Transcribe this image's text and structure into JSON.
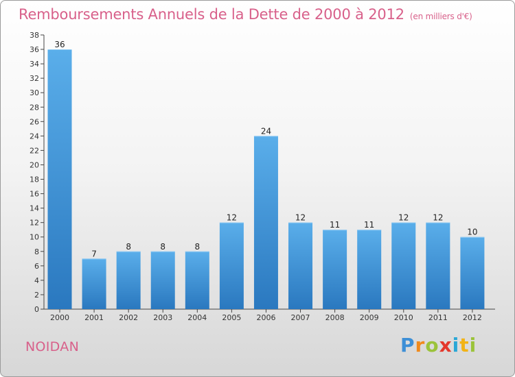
{
  "header": {
    "title": "Remboursements Annuels de la Dette de 2000 à 2012",
    "unit": "(en milliers d'€)"
  },
  "location": "NOIDAN",
  "logo": {
    "text": "Proxiti",
    "letters": [
      "P",
      "r",
      "o",
      "x",
      "i",
      "t",
      "i"
    ],
    "colors": [
      "#3d8fd6",
      "#f08a1c",
      "#9bc33a",
      "#e4372b",
      "#2aa7d6",
      "#f2b316",
      "#9bc33a"
    ]
  },
  "colors": {
    "bar_light": "#5aaeea",
    "bar_dark": "#2a78bf",
    "title": "#d8608a"
  },
  "chart_data": {
    "type": "bar",
    "title": "Remboursements Annuels de la Dette de 2000 à 2012",
    "categories": [
      "2000",
      "2001",
      "2002",
      "2003",
      "2004",
      "2005",
      "2006",
      "2007",
      "2008",
      "2009",
      "2010",
      "2011",
      "2012"
    ],
    "values": [
      36,
      7,
      8,
      8,
      8,
      12,
      24,
      12,
      11,
      11,
      12,
      12,
      10
    ],
    "ylim": [
      0,
      38
    ],
    "yticks": [
      0,
      2,
      4,
      6,
      8,
      10,
      12,
      14,
      16,
      18,
      20,
      22,
      24,
      26,
      28,
      30,
      32,
      34,
      36,
      38
    ],
    "xlabel": "",
    "ylabel": "",
    "grid": false,
    "data_labels": true
  }
}
